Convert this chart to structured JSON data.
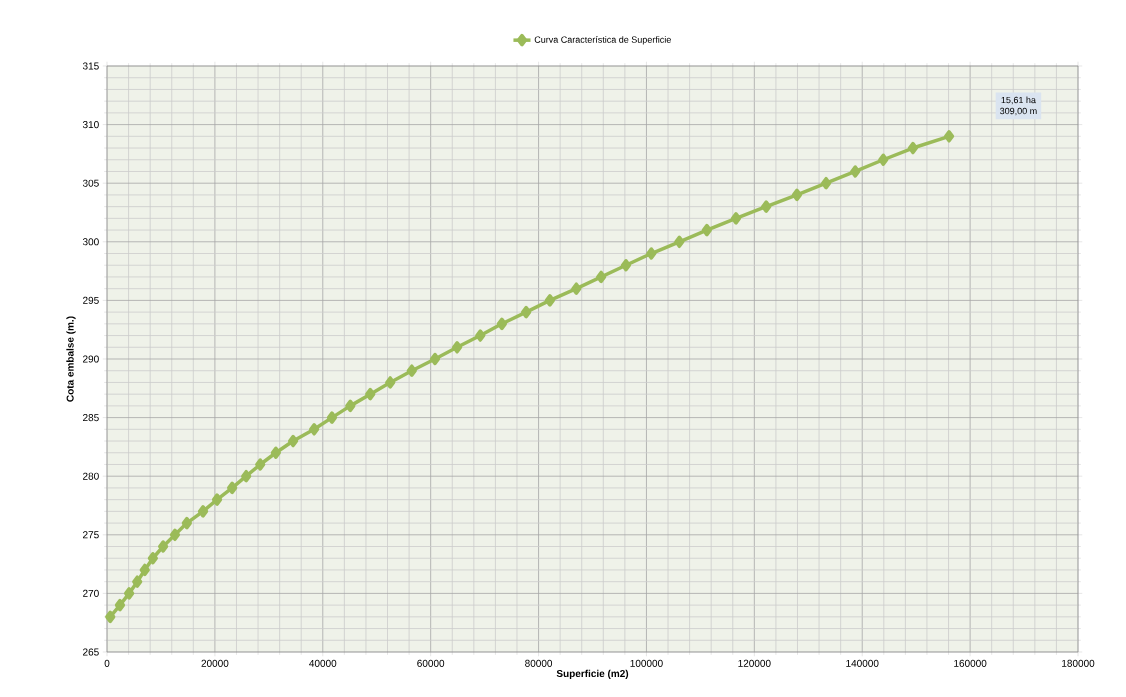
{
  "chart_data": {
    "type": "line",
    "xlabel": "Superficie (m2)",
    "ylabel": "Cota  embalse (m.)",
    "x": [
      600,
      2400,
      4100,
      5600,
      7000,
      8500,
      10400,
      12600,
      14800,
      17800,
      20400,
      23200,
      25800,
      28400,
      31300,
      34500,
      38400,
      41700,
      45100,
      48800,
      52500,
      56500,
      60800,
      64900,
      69200,
      73200,
      77700,
      82100,
      87000,
      91600,
      96200,
      100900,
      106100,
      111200,
      116600,
      122200,
      127900,
      133300,
      138700,
      143900,
      149400,
      156100
    ],
    "series": [
      {
        "name": "Curva Característica de Superficie",
        "color": "#9bbb59",
        "values": [
          268,
          269,
          270,
          271,
          272,
          273,
          274,
          275,
          276,
          277,
          278,
          279,
          280,
          281,
          282,
          283,
          284,
          285,
          286,
          287,
          288,
          289,
          290,
          291,
          292,
          293,
          294,
          295,
          296,
          297,
          298,
          299,
          300,
          301,
          302,
          303,
          304,
          305,
          306,
          307,
          308,
          309
        ]
      }
    ],
    "xlim": [
      0,
      180000
    ],
    "xticks": [
      0,
      20000,
      40000,
      60000,
      80000,
      100000,
      120000,
      140000,
      160000,
      180000
    ],
    "ylim": [
      265,
      315
    ],
    "yticks": [
      265,
      270,
      275,
      280,
      285,
      290,
      295,
      300,
      305,
      310,
      315
    ],
    "grid": true,
    "legend": "top",
    "marker": "diamond",
    "line_style": "solid",
    "annotations": [
      "15,61 ha",
      "309,00 m"
    ]
  }
}
